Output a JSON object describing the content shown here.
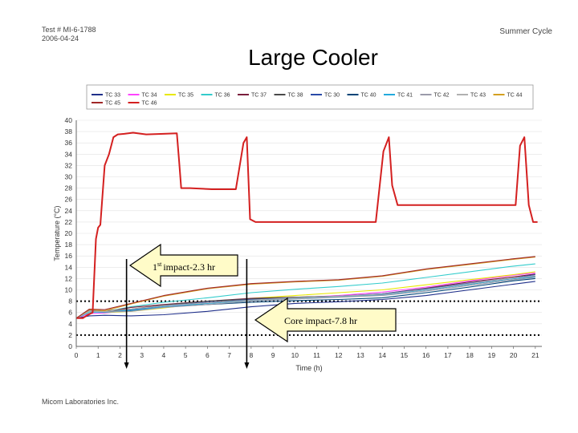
{
  "header": {
    "test_no": "Test # MI-6-1788",
    "date": "2006-04-24",
    "cycle": "Summer Cycle"
  },
  "title": "Large Cooler",
  "footer": "Micom Laboratories Inc.",
  "annotations": {
    "first_impact": "impact-2.3 hr",
    "first_impact_sup": "st",
    "first_impact_num": "1",
    "core_impact": "Core impact-7.8 hr"
  },
  "colors": {
    "tc46": "#d42020",
    "arrow_fill": "#fffbc8",
    "axis": "#666666"
  },
  "chart_data": {
    "type": "line",
    "xlabel": "Time (h)",
    "ylabel": "Temperature (°C)",
    "xlim": [
      0,
      21.3
    ],
    "ylim": [
      0,
      40
    ],
    "xticks": [
      0,
      1,
      2,
      3,
      4,
      5,
      6,
      7,
      8,
      9,
      10,
      11,
      12,
      13,
      14,
      15,
      16,
      17,
      18,
      19,
      20,
      21
    ],
    "yticks": [
      0,
      2,
      4,
      6,
      8,
      10,
      12,
      14,
      16,
      18,
      20,
      22,
      24,
      26,
      28,
      30,
      32,
      34,
      36,
      38,
      40
    ],
    "legend_position": "top",
    "reference_lines": [
      {
        "y": 8,
        "style": "dotted"
      },
      {
        "y": 2,
        "style": "dotted"
      }
    ],
    "markers": [
      {
        "x": 2.3,
        "label": "impact-2.3 hr"
      },
      {
        "x": 7.8,
        "label": "Core impact-7.8 hr"
      }
    ],
    "series": [
      {
        "name": "TC 33",
        "color": "#1f2f8a",
        "x": [
          0,
          0.6,
          1.3,
          2.5,
          4,
          6,
          8,
          10,
          12,
          14,
          16,
          18,
          20,
          21
        ],
        "y": [
          5,
          5.4,
          5.5,
          5.4,
          5.6,
          6.2,
          7,
          7.6,
          7.9,
          8.3,
          9,
          10,
          11,
          11.5
        ]
      },
      {
        "name": "TC 34",
        "color": "#ff44ff",
        "x": [
          0,
          0.6,
          1.3,
          2.5,
          4,
          6,
          8,
          10,
          12,
          14,
          16,
          18,
          20,
          21
        ],
        "y": [
          5,
          5.8,
          5.9,
          6.4,
          7,
          7.7,
          8.2,
          8.6,
          9,
          9.6,
          10.5,
          11.6,
          12.6,
          13
        ]
      },
      {
        "name": "TC 35",
        "color": "#e8e800",
        "x": [
          0,
          0.6,
          1.3,
          2.5,
          4,
          6,
          8,
          10,
          12,
          14,
          16,
          18,
          20,
          21
        ],
        "y": [
          5,
          6.2,
          6,
          6.2,
          6.8,
          7.7,
          8.5,
          9,
          9.5,
          10,
          10.9,
          11.8,
          12.7,
          13.2
        ]
      },
      {
        "name": "TC 36",
        "color": "#33cccc",
        "x": [
          0,
          0.6,
          1.3,
          2.5,
          4,
          6,
          8,
          10,
          12,
          14,
          16,
          18,
          20,
          21
        ],
        "y": [
          5,
          6,
          6.1,
          7,
          7.8,
          8.6,
          9.5,
          10.1,
          10.6,
          11.2,
          12.2,
          13.2,
          14.2,
          14.6
        ]
      },
      {
        "name": "TC 37",
        "color": "#7a1f3d",
        "x": [
          0,
          0.6,
          1.3,
          2.5,
          4,
          6,
          8,
          10,
          12,
          14,
          16,
          18,
          20,
          21
        ],
        "y": [
          5,
          6.2,
          6.1,
          6.9,
          7.4,
          8,
          8.5,
          8.7,
          8.9,
          9.3,
          10.3,
          11.4,
          12.3,
          12.8
        ]
      },
      {
        "name": "TC 38",
        "color": "#4a4a4a",
        "x": [
          0,
          0.6,
          1.3,
          2.5,
          4,
          6,
          8,
          10,
          12,
          14,
          16,
          18,
          20,
          21
        ],
        "y": [
          5,
          6.4,
          6.3,
          6.6,
          7.3,
          8,
          8.4,
          8.7,
          8.9,
          9.2,
          10,
          11,
          12,
          12.4
        ]
      },
      {
        "name": "TC 30",
        "color": "#2a4aa8",
        "x": [
          0,
          0.6,
          1.3,
          2.5,
          4,
          6,
          8,
          10,
          12,
          14,
          16,
          18,
          20,
          21
        ],
        "y": [
          5,
          6.4,
          6.2,
          6.5,
          7.2,
          7.8,
          8.3,
          8.6,
          8.9,
          9.3,
          10.2,
          11.2,
          12.1,
          12.7
        ]
      },
      {
        "name": "TC 40",
        "color": "#004477",
        "x": [
          0,
          0.6,
          1.3,
          2.5,
          4,
          6,
          8,
          10,
          12,
          14,
          16,
          18,
          20,
          21
        ],
        "y": [
          5,
          6.3,
          6.2,
          6.3,
          7,
          7.4,
          7.8,
          8.1,
          8.3,
          8.6,
          9.5,
          10.5,
          11.6,
          12
        ]
      },
      {
        "name": "TC 41",
        "color": "#22aadd",
        "x": [
          0,
          0.6,
          1.3,
          2.5,
          4,
          6,
          8,
          10,
          12,
          14,
          16,
          18,
          20,
          21
        ],
        "y": [
          5,
          6.2,
          6,
          6.4,
          7,
          7.6,
          8.1,
          8.5,
          8.8,
          9.1,
          10,
          11,
          12,
          12.3
        ]
      },
      {
        "name": "TC 42",
        "color": "#9a9aaa",
        "x": [
          0,
          0.6,
          1.3,
          2.5,
          4,
          6,
          8,
          10,
          12,
          14,
          16,
          18,
          20,
          21
        ],
        "y": [
          5,
          6.3,
          6.1,
          6.2,
          6.9,
          7.4,
          8,
          8.4,
          8.7,
          9,
          9.8,
          10.8,
          11.8,
          12.2
        ]
      },
      {
        "name": "TC 43",
        "color": "#b0b0b0",
        "x": [
          0,
          0.6,
          1.3,
          2.5,
          4,
          6,
          8,
          10,
          12,
          14,
          16,
          18,
          20,
          21
        ],
        "y": [
          5,
          6.2,
          6.2,
          6.6,
          7.2,
          7.7,
          8.2,
          8.6,
          8.9,
          9.2,
          10.1,
          11.1,
          12.1,
          12.5
        ]
      },
      {
        "name": "TC 44",
        "color": "#d4a020",
        "x": [
          0,
          0.6,
          1.3,
          2.5,
          4,
          6,
          8,
          10,
          12,
          14,
          16,
          18,
          20,
          21
        ],
        "y": [
          5,
          6.5,
          6.3,
          7.5,
          8.9,
          10.2,
          11,
          11.4,
          11.7,
          12.4,
          13.6,
          14.5,
          15.4,
          15.8
        ]
      },
      {
        "name": "TC 45",
        "color": "#a02828",
        "x": [
          0,
          0.6,
          1.3,
          2.5,
          4,
          6,
          8,
          10,
          12,
          14,
          16,
          18,
          20,
          21
        ],
        "y": [
          5,
          6.6,
          6.5,
          7.6,
          9,
          10.3,
          11.1,
          11.5,
          11.8,
          12.5,
          13.7,
          14.6,
          15.5,
          15.9
        ]
      },
      {
        "name": "TC 46",
        "color": "#d42020",
        "x": [
          0,
          0.3,
          0.5,
          0.75,
          0.9,
          1.0,
          1.1,
          1.3,
          1.5,
          1.7,
          1.9,
          2.2,
          2.6,
          3.2,
          4,
          4.6,
          4.7,
          4.8,
          5.2,
          6.2,
          7.3,
          7.65,
          7.8,
          7.95,
          8.2,
          9,
          10,
          12,
          13.2,
          13.7,
          14.05,
          14.3,
          14.45,
          14.7,
          16,
          18,
          20.1,
          20.3,
          20.5,
          20.7,
          20.9,
          21.1
        ],
        "y": [
          5,
          5,
          5.5,
          6,
          19,
          21,
          21.5,
          32,
          34,
          37,
          37.5,
          37.6,
          37.8,
          37.5,
          37.6,
          37.7,
          33,
          28,
          28,
          27.8,
          27.8,
          36,
          37,
          22.5,
          22,
          22,
          22,
          22,
          22,
          22,
          34.5,
          37,
          28.5,
          25,
          25,
          25,
          25,
          35.5,
          37,
          25,
          22,
          22
        ]
      }
    ]
  }
}
